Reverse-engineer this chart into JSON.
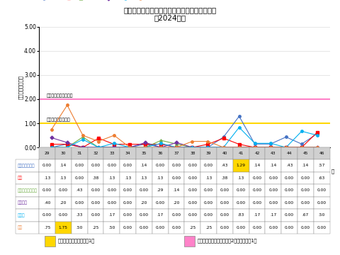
{
  "title1": "青森県の水痘　定点当たり報告数（保健所別）",
  "title2": "（2024年）",
  "ylabel": "定点当たり報告数",
  "weeks": [
    29,
    30,
    31,
    32,
    33,
    34,
    35,
    36,
    37,
    38,
    39,
    40,
    41,
    42,
    43,
    44,
    45,
    46
  ],
  "series_order": [
    "東地方・青森市",
    "弘前",
    "三戸地方・八戸市",
    "五所川原",
    "上十三",
    "むつ"
  ],
  "series": {
    "東地方・青森市": {
      "values": [
        0.0,
        0.14,
        0.0,
        0.0,
        0.0,
        0.0,
        0.14,
        0.0,
        0.0,
        0.0,
        0.0,
        0.43,
        1.29,
        0.14,
        0.14,
        0.43,
        0.14,
        0.57
      ],
      "color": "#4472C4",
      "marker": "o"
    },
    "弘前": {
      "values": [
        0.13,
        0.13,
        0.0,
        0.38,
        0.13,
        0.13,
        0.13,
        0.13,
        0.0,
        0.0,
        0.13,
        0.38,
        0.13,
        0.0,
        0.0,
        0.0,
        0.0,
        0.63
      ],
      "color": "#FF0000",
      "marker": "s"
    },
    "三戸地方・八戸市": {
      "values": [
        0.0,
        0.0,
        0.43,
        0.0,
        0.0,
        0.0,
        0.0,
        0.29,
        0.14,
        0.0,
        0.0,
        0.0,
        0.0,
        0.0,
        0.0,
        0.0,
        0.0,
        0.0
      ],
      "color": "#70AD47",
      "marker": "^"
    },
    "五所川原": {
      "values": [
        0.4,
        0.2,
        0.0,
        0.0,
        0.0,
        0.0,
        0.2,
        0.0,
        0.2,
        0.0,
        0.0,
        0.0,
        0.0,
        0.0,
        0.0,
        0.0,
        0.0,
        0.0
      ],
      "color": "#7030A0",
      "marker": "D"
    },
    "上十三": {
      "values": [
        0.0,
        0.0,
        0.33,
        0.0,
        0.17,
        0.0,
        0.0,
        0.17,
        0.0,
        0.0,
        0.0,
        0.0,
        0.83,
        0.17,
        0.17,
        0.0,
        0.67,
        0.5
      ],
      "color": "#00B0F0",
      "marker": "o"
    },
    "むつ": {
      "values": [
        0.75,
        1.75,
        0.5,
        0.25,
        0.5,
        0.0,
        0.0,
        0.0,
        0.0,
        0.25,
        0.25,
        0.0,
        0.0,
        0.0,
        0.0,
        0.0,
        0.0,
        0.0
      ],
      "color": "#ED7D31",
      "marker": "o"
    }
  },
  "attention_level": 1.0,
  "warning_level": 2.0,
  "attention_color": "#FFD700",
  "warning_color": "#FF82C8",
  "ylim": [
    0.0,
    5.0
  ],
  "yticks": [
    0.0,
    1.0,
    2.0,
    3.0,
    4.0,
    5.0
  ],
  "attention_label": "注意報レベル基準値",
  "warning_label": "警報レベル開始基準値",
  "table_highlight": {
    "東地方・青森市": [
      12
    ],
    "むつ": [
      1
    ]
  },
  "legend_note1": "：注意報レベル（基準値1）",
  "legend_note2": "：警報レベル（開始基準値2、終息基準値1）",
  "bg_color": "#FFFFFF"
}
